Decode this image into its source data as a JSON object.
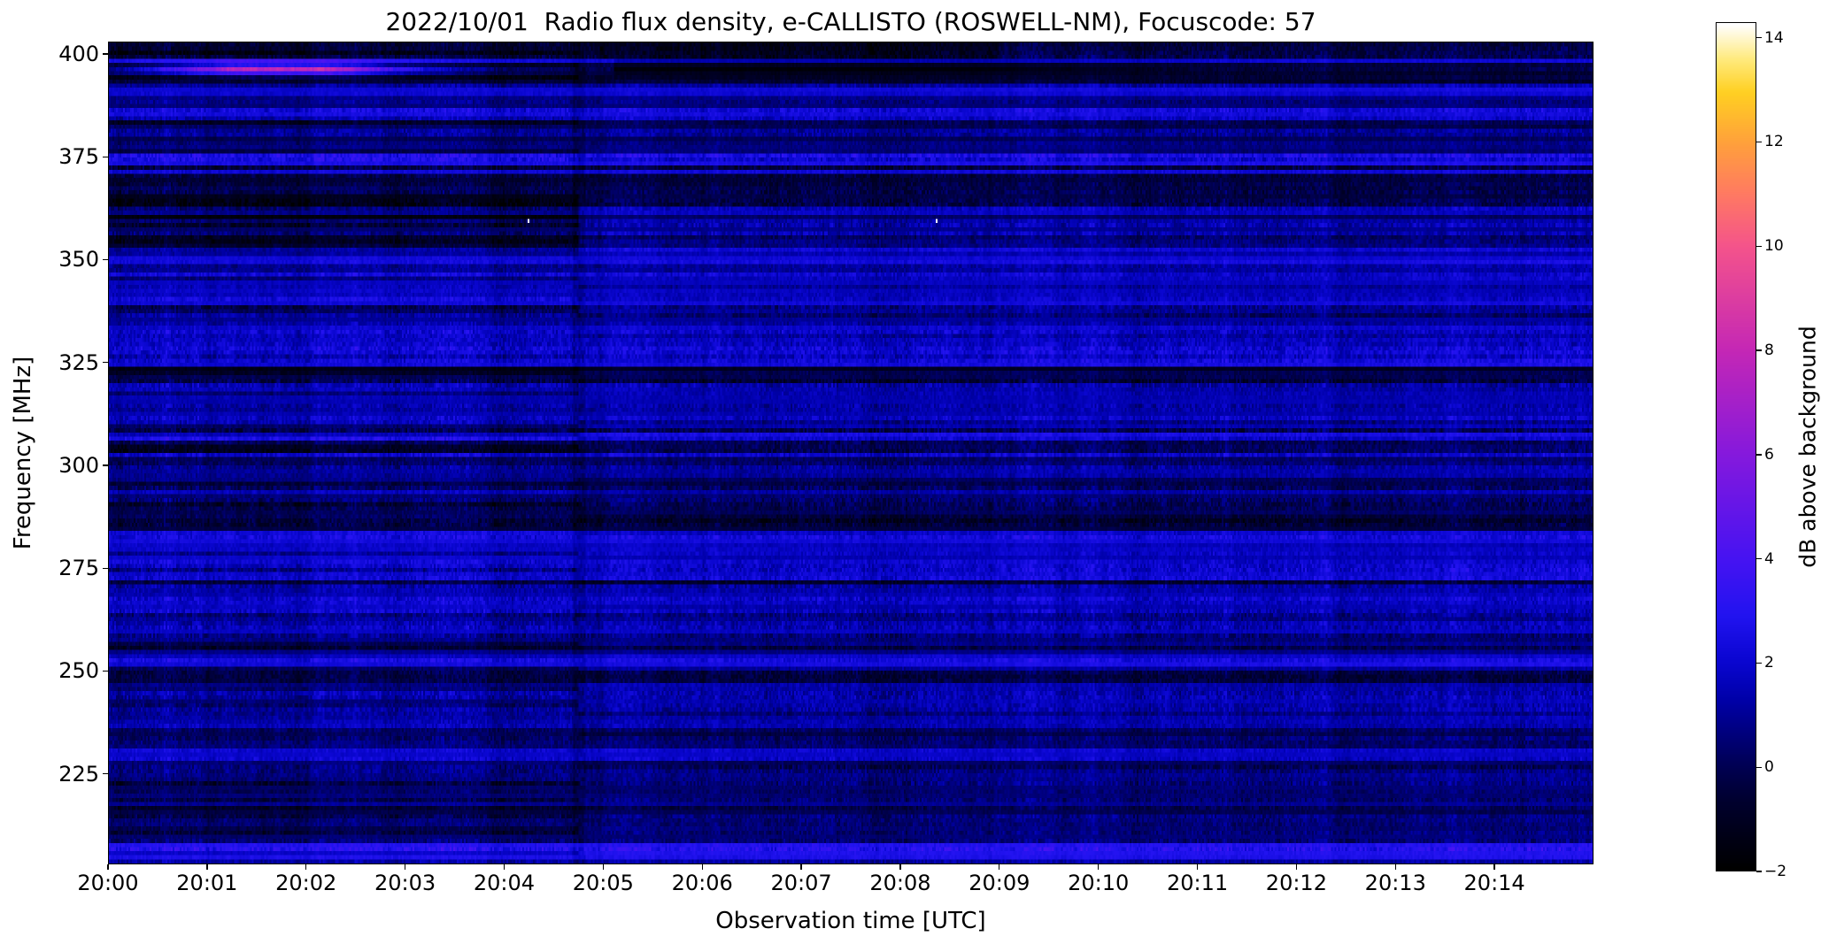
{
  "chart_data": {
    "type": "heatmap",
    "title": "2022/10/01  Radio flux density, e-CALLISTO (ROSWELL-NM), Focuscode: 57",
    "xlabel": "Observation time [UTC]",
    "ylabel": "Frequency [MHz]",
    "x_tick_labels": [
      "20:00",
      "20:01",
      "20:02",
      "20:03",
      "20:04",
      "20:05",
      "20:06",
      "20:07",
      "20:08",
      "20:09",
      "20:10",
      "20:11",
      "20:12",
      "20:13",
      "20:14"
    ],
    "x_range": [
      "20:00:00",
      "20:15:00"
    ],
    "y_tick_labels": [
      400,
      375,
      350,
      325,
      300,
      275,
      250,
      225
    ],
    "freq_range_mhz": [
      203,
      403
    ],
    "grid": false,
    "colormap": "gnuplot2-like (black to blue to violet to magenta to pink to orange to yellow to white)",
    "colormap_stops": [
      {
        "t": 0.0,
        "color": "#000000"
      },
      {
        "t": 0.08,
        "color": "#00002e"
      },
      {
        "t": 0.123,
        "color": "#000054"
      },
      {
        "t": 0.2,
        "color": "#0000a8"
      },
      {
        "t": 0.245,
        "color": "#0a06d0"
      },
      {
        "t": 0.3,
        "color": "#2213f0"
      },
      {
        "t": 0.368,
        "color": "#4713f2"
      },
      {
        "t": 0.491,
        "color": "#8519dd"
      },
      {
        "t": 0.613,
        "color": "#c427b6"
      },
      {
        "t": 0.736,
        "color": "#f4538c"
      },
      {
        "t": 0.8,
        "color": "#ff7a62"
      },
      {
        "t": 0.859,
        "color": "#ffa03c"
      },
      {
        "t": 0.92,
        "color": "#ffd022"
      },
      {
        "t": 0.96,
        "color": "#ffeb80"
      },
      {
        "t": 1.0,
        "color": "#ffffff"
      }
    ],
    "colorbar": {
      "label": "dB above background",
      "tick_values": [
        -2,
        0,
        2,
        4,
        6,
        8,
        10,
        12,
        14
      ],
      "tick_labels": [
        "−2",
        "0",
        "2",
        "4",
        "6",
        "8",
        "10",
        "12",
        "14"
      ],
      "vmin": -2,
      "vmax": 14.3
    },
    "background": {
      "description": "quiet solar radio spectrogram: horizontal noise bands, mostly -1 to 3 dB (black to blue), fine vertical time striations",
      "typical_level_db": [
        0,
        2.5
      ]
    },
    "features": [
      {
        "name": "bright-rfi-streak",
        "freq_mhz": "396-398",
        "time_utc": "20:00:30-20:03:00",
        "peak_db": 8.5,
        "appearance": "magenta-pink horizontal streak near top left"
      },
      {
        "name": "dark-lane",
        "freq_mhz": "395-399",
        "time_utc": "20:04:45-20:09:30",
        "level_db": -1.7,
        "appearance": "near-black horizontal lane"
      },
      {
        "name": "dark-patch-left",
        "freq_mhz": "352-366",
        "time_utc": "20:00-20:04:45",
        "level_db": -1.2,
        "appearance": "dark block ending at texture change"
      },
      {
        "name": "texture-change",
        "time_utc": "20:04:45",
        "appearance": "vertical boundary where several noise bands change level"
      },
      {
        "name": "white-speck",
        "freq_mhz": 360,
        "time_utc": "~20:04:14",
        "level_db": 14
      },
      {
        "name": "white-speck",
        "freq_mhz": 360,
        "time_utc": "~20:08:21",
        "level_db": 14
      }
    ]
  },
  "colors": {
    "figure_background": "#ffffff",
    "text": "#000000",
    "axes_edge": "#000000"
  }
}
